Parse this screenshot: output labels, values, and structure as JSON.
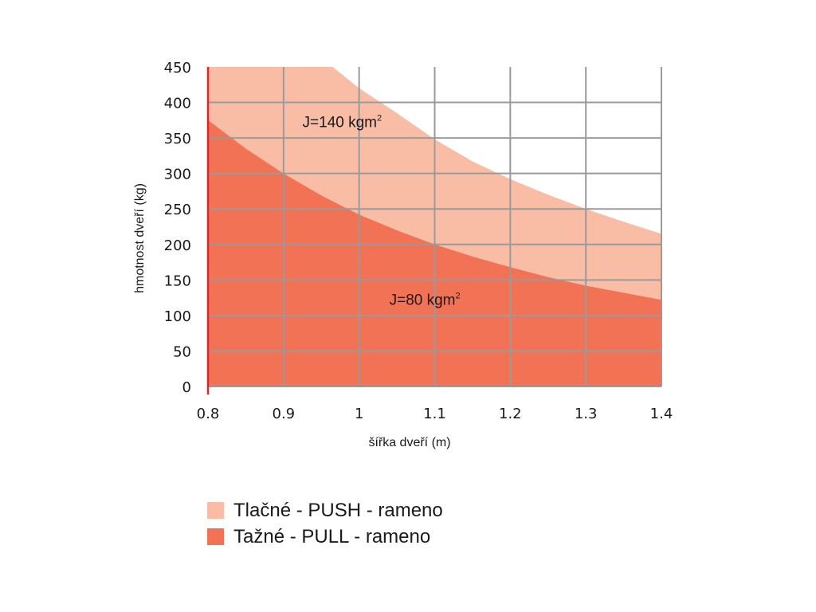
{
  "chart_data": {
    "type": "area",
    "xlabel": "šířka dveří (m)",
    "ylabel": "hmotnost dveří (kg)",
    "xlim": [
      0.8,
      1.4
    ],
    "ylim": [
      0,
      450
    ],
    "x_ticks": [
      "0.8",
      "0.9",
      "1",
      "1.1",
      "1.2",
      "1.3",
      "1.4"
    ],
    "y_ticks": [
      "0",
      "50",
      "100",
      "150",
      "200",
      "250",
      "300",
      "350",
      "400",
      "450"
    ],
    "grid": true,
    "legend_position": "bottom-left",
    "series": [
      {
        "name": "Tlačné - PUSH - rameno",
        "color": "#f9bda5",
        "x": [
          0.8,
          0.85,
          0.9,
          0.93,
          0.965,
          1.0,
          1.05,
          1.1,
          1.15,
          1.2,
          1.25,
          1.3,
          1.35,
          1.4
        ],
        "y": [
          450,
          450,
          450,
          450,
          450,
          420,
          385,
          348,
          317,
          292,
          270,
          250,
          232,
          215
        ]
      },
      {
        "name": "Tažné - PULL - rameno",
        "color": "#f27255",
        "x": [
          0.8,
          0.85,
          0.9,
          0.95,
          1.0,
          1.05,
          1.1,
          1.15,
          1.2,
          1.25,
          1.3,
          1.35,
          1.4
        ],
        "y": [
          375,
          335,
          300,
          269,
          242,
          220,
          200,
          183,
          168,
          154,
          142,
          132,
          122
        ]
      }
    ],
    "annotations": [
      {
        "text": "J=140 kgm",
        "sup": "2",
        "x": 0.925,
        "y": 365
      },
      {
        "text": "J=80 kgm",
        "sup": "2",
        "x": 1.04,
        "y": 115
      }
    ]
  }
}
